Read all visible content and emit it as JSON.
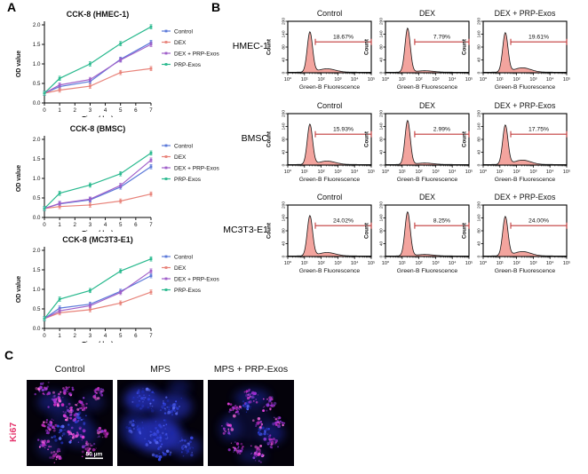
{
  "colors": {
    "control": "#5b79d9",
    "dex": "#e8837a",
    "dex_prp_exos": "#a05fc9",
    "prp_exos": "#29b98e",
    "hist_fill": "#f3a49e",
    "hist_stroke": "#1a1a1a",
    "gate": "#c23b3b",
    "ki67": "#e5356d"
  },
  "panel_a": {
    "label": "A"
  },
  "panel_b": {
    "label": "B"
  },
  "panel_c": {
    "label": "C",
    "row_label": "Ki67",
    "titles": [
      "Control",
      "MPS",
      "MPS + PRP-Exos"
    ],
    "scale_bar": "50 μm"
  },
  "chart_data": [
    {
      "type": "line",
      "title": "CCK-8 (HMEC-1)",
      "xlabel": "Time (day)",
      "ylabel": "OD value",
      "x": [
        0,
        1,
        3,
        5,
        7
      ],
      "xticks": [
        0,
        1,
        2,
        3,
        4,
        5,
        6,
        7
      ],
      "ylim": [
        0,
        2.0
      ],
      "yticks": [
        0,
        0.5,
        1.0,
        1.5,
        2.0
      ],
      "legend_position": "right",
      "series": [
        {
          "name": "Control",
          "color_key": "control",
          "values": [
            0.25,
            0.42,
            0.55,
            1.12,
            1.55
          ]
        },
        {
          "name": "DEX",
          "color_key": "dex",
          "values": [
            0.25,
            0.33,
            0.43,
            0.78,
            0.88
          ]
        },
        {
          "name": "DEX + PRP-Exos",
          "color_key": "dex_prp_exos",
          "values": [
            0.25,
            0.46,
            0.6,
            1.1,
            1.5
          ]
        },
        {
          "name": "PRP-Exos",
          "color_key": "prp_exos",
          "values": [
            0.25,
            0.63,
            1.0,
            1.52,
            1.95
          ]
        }
      ]
    },
    {
      "type": "line",
      "title": "CCK-8 (BMSC)",
      "xlabel": "Time (day)",
      "ylabel": "OD value",
      "x": [
        0,
        1,
        3,
        5,
        7
      ],
      "xticks": [
        0,
        1,
        2,
        3,
        4,
        5,
        6,
        7
      ],
      "ylim": [
        0,
        2.0
      ],
      "yticks": [
        0,
        0.5,
        1.0,
        1.5,
        2.0
      ],
      "legend_position": "right",
      "series": [
        {
          "name": "Control",
          "color_key": "control",
          "values": [
            0.23,
            0.35,
            0.45,
            0.78,
            1.3
          ]
        },
        {
          "name": "DEX",
          "color_key": "dex",
          "values": [
            0.23,
            0.28,
            0.32,
            0.42,
            0.6
          ]
        },
        {
          "name": "DEX + PRP-Exos",
          "color_key": "dex_prp_exos",
          "values": [
            0.23,
            0.36,
            0.47,
            0.82,
            1.47
          ]
        },
        {
          "name": "PRP-Exos",
          "color_key": "prp_exos",
          "values": [
            0.23,
            0.62,
            0.83,
            1.12,
            1.65
          ]
        }
      ]
    },
    {
      "type": "line",
      "title": "CCK-8 (MC3T3-E1)",
      "xlabel": "Time (day)",
      "ylabel": "OD value",
      "x": [
        0,
        1,
        3,
        5,
        7
      ],
      "xticks": [
        0,
        1,
        2,
        3,
        4,
        5,
        6,
        7
      ],
      "ylim": [
        0,
        2.0
      ],
      "yticks": [
        0,
        0.5,
        1.0,
        1.5,
        2.0
      ],
      "legend_position": "right",
      "series": [
        {
          "name": "Control",
          "color_key": "control",
          "values": [
            0.25,
            0.52,
            0.62,
            0.95,
            1.35
          ]
        },
        {
          "name": "DEX",
          "color_key": "dex",
          "values": [
            0.25,
            0.4,
            0.48,
            0.65,
            0.93
          ]
        },
        {
          "name": "DEX + PRP-Exos",
          "color_key": "dex_prp_exos",
          "values": [
            0.25,
            0.45,
            0.58,
            0.92,
            1.47
          ]
        },
        {
          "name": "PRP-Exos",
          "color_key": "prp_exos",
          "values": [
            0.25,
            0.75,
            0.97,
            1.47,
            1.78
          ]
        }
      ]
    },
    {
      "type": "histogram",
      "title_rows": [
        "HMEC-1",
        "BMSC",
        "MC3T3-E1"
      ],
      "title_cols": [
        "Control",
        "DEX",
        "DEX + PRP-Exos"
      ],
      "xlabel": "Green-B Fluorescence",
      "ylabel": "Count",
      "xticks": [
        "10⁰",
        "10¹",
        "10²",
        "10³",
        "10⁴",
        "10⁵"
      ],
      "yticks": [
        "0",
        "40",
        "80",
        "140",
        "200"
      ],
      "percentages": [
        [
          "18.67%",
          "7.79%",
          "19.61%"
        ],
        [
          "15.93%",
          "2.99%",
          "17.75%"
        ],
        [
          "24.02%",
          "8.25%",
          "24.00%"
        ]
      ]
    }
  ]
}
